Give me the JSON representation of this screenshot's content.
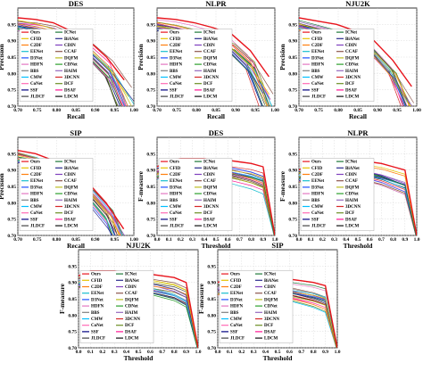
{
  "legend_labels": [
    "Ours",
    "ICNet",
    "CFID",
    "BiANet",
    "C2DF",
    "CDIN",
    "EENet",
    "CCAF",
    "D3Net",
    "DQFM",
    "HDFN",
    "CDNet",
    "BBS",
    "HAIM",
    "CMW",
    "3DCNN",
    "CoNet",
    "DCF",
    "SSF",
    "DSAF",
    "JLDCF",
    "LDCM"
  ],
  "series_colors": [
    "#e8141c",
    "#1f7a3a",
    "#e6c200",
    "#2a2a8c",
    "#ff7f0e",
    "#7f3fbf",
    "#17becf",
    "#8c564b",
    "#1f4fff",
    "#bcbd22",
    "#e377c2",
    "#2ca02c",
    "#7f7f7f",
    "#9467bd",
    "#00bfff",
    "#d62728",
    "#ff69b4",
    "#6b8e23",
    "#000080",
    "#ff1493",
    "#444444",
    "#111111"
  ],
  "chart_data": [
    {
      "type": "line",
      "kind": "pr",
      "title": "DES",
      "xlabel": "Recall",
      "ylabel": "Precision",
      "xlim": [
        0.7,
        1.0
      ],
      "ylim": [
        0.7,
        1.0
      ],
      "xticks": [
        "0.70",
        "0.75",
        "0.80",
        "0.85",
        "0.90",
        "0.95",
        "1.00"
      ],
      "yticks": [
        "0.70",
        "0.75",
        "0.80",
        "0.85",
        "0.90",
        "0.95"
      ],
      "series": [
        {
          "name": "Ours",
          "values": [
            0.97,
            0.965,
            0.955,
            0.93,
            0.9,
            0.85,
            0.78
          ]
        }
      ]
    },
    {
      "type": "line",
      "kind": "pr",
      "title": "NLPR",
      "xlabel": "Recall",
      "ylabel": "Precision",
      "xlim": [
        0.7,
        1.0
      ],
      "ylim": [
        0.7,
        1.0
      ],
      "xticks": [
        "0.70",
        "0.75",
        "0.80",
        "0.85",
        "0.90",
        "0.95",
        "1.00"
      ],
      "yticks": [
        "0.70",
        "0.75",
        "0.80",
        "0.85",
        "0.90",
        "0.95"
      ],
      "series": [
        {
          "name": "Ours",
          "values": [
            0.97,
            0.965,
            0.955,
            0.94,
            0.92,
            0.87,
            0.79
          ]
        }
      ]
    },
    {
      "type": "line",
      "kind": "pr",
      "title": "NJU2K",
      "xlabel": "Recall",
      "ylabel": "Precision",
      "xlim": [
        0.7,
        1.0
      ],
      "ylim": [
        0.7,
        1.0
      ],
      "xticks": [
        "0.70",
        "0.75",
        "0.80",
        "0.85",
        "0.90",
        "0.95",
        "1.00"
      ],
      "yticks": [
        "0.70",
        "0.75",
        "0.80",
        "0.85",
        "0.90",
        "0.95"
      ],
      "series": [
        {
          "name": "Ours",
          "values": [
            0.97,
            0.96,
            0.95,
            0.93,
            0.9,
            0.84,
            0.76
          ]
        }
      ]
    },
    {
      "type": "line",
      "kind": "pr",
      "title": "SIP",
      "xlabel": "Recall",
      "ylabel": "Precision",
      "xlim": [
        0.7,
        1.0
      ],
      "ylim": [
        0.7,
        1.0
      ],
      "xticks": [
        "0.70",
        "0.75",
        "0.80",
        "0.85",
        "0.90",
        "0.95",
        "1.00"
      ],
      "yticks": [
        "0.70",
        "0.75",
        "0.80",
        "0.85",
        "0.90",
        "0.95"
      ],
      "series": [
        {
          "name": "Ours",
          "values": [
            0.96,
            0.95,
            0.93,
            0.9,
            0.86,
            0.8,
            0.72
          ]
        }
      ]
    },
    {
      "type": "line",
      "kind": "fm",
      "title": "DES",
      "xlabel": "Threshold",
      "ylabel": "F-measure",
      "xlim": [
        0,
        1
      ],
      "ylim": [
        0.7,
        1.0
      ],
      "xticks": [
        "0.0",
        "0.1",
        "0.2",
        "0.3",
        "0.4",
        "0.5",
        "0.6",
        "0.7",
        "0.8",
        "0.9",
        "1.0"
      ],
      "yticks": [
        "0.70",
        "0.75",
        "0.80",
        "0.85",
        "0.90",
        "0.95"
      ],
      "series": [
        {
          "name": "Ours",
          "values": [
            0.91,
            0.93,
            0.935,
            0.935,
            0.935,
            0.93,
            0.93,
            0.925,
            0.92,
            0.91,
            0.7
          ]
        }
      ]
    },
    {
      "type": "line",
      "kind": "fm",
      "title": "NLPR",
      "xlabel": "Threshold",
      "ylabel": "F-measure",
      "xlim": [
        0,
        1
      ],
      "ylim": [
        0.7,
        1.0
      ],
      "xticks": [
        "0.0",
        "0.1",
        "0.2",
        "0.3",
        "0.4",
        "0.5",
        "0.6",
        "0.7",
        "0.8",
        "0.9",
        "1.0"
      ],
      "yticks": [
        "0.70",
        "0.75",
        "0.80",
        "0.85",
        "0.90",
        "0.95"
      ],
      "series": [
        {
          "name": "Ours",
          "values": [
            0.9,
            0.925,
            0.93,
            0.93,
            0.93,
            0.925,
            0.925,
            0.92,
            0.91,
            0.9,
            0.7
          ]
        }
      ]
    },
    {
      "type": "line",
      "kind": "fm",
      "title": "NJU2K",
      "xlabel": "Threshold",
      "ylabel": "F-measure",
      "xlim": [
        0,
        1
      ],
      "ylim": [
        0.7,
        1.0
      ],
      "xticks": [
        "0.0",
        "0.1",
        "0.2",
        "0.3",
        "0.4",
        "0.5",
        "0.6",
        "0.7",
        "0.8",
        "0.9",
        "1.0"
      ],
      "yticks": [
        "0.70",
        "0.75",
        "0.80",
        "0.85",
        "0.90",
        "0.95"
      ],
      "series": [
        {
          "name": "Ours",
          "values": [
            0.92,
            0.935,
            0.935,
            0.935,
            0.93,
            0.93,
            0.925,
            0.92,
            0.915,
            0.9,
            0.7
          ]
        }
      ]
    },
    {
      "type": "line",
      "kind": "fm",
      "title": "SIP",
      "xlabel": "Threshold",
      "ylabel": "F-measure",
      "xlim": [
        0,
        1
      ],
      "ylim": [
        0.7,
        1.0
      ],
      "xticks": [
        "0.0",
        "0.1",
        "0.2",
        "0.3",
        "0.4",
        "0.5",
        "0.6",
        "0.7",
        "0.8",
        "0.9",
        "1.0"
      ],
      "yticks": [
        "0.70",
        "0.75",
        "0.80",
        "0.85",
        "0.90",
        "0.95"
      ],
      "series": [
        {
          "name": "Ours",
          "values": [
            0.9,
            0.915,
            0.92,
            0.92,
            0.915,
            0.91,
            0.91,
            0.905,
            0.9,
            0.89,
            0.7
          ]
        }
      ]
    }
  ]
}
